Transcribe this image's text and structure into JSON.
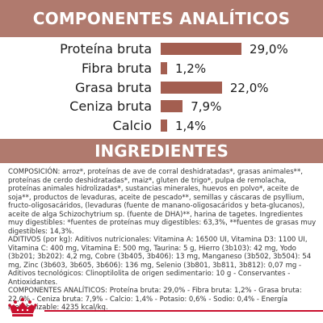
{
  "analytic_section": {
    "title": "COMPONENTES ANALÍTICOS",
    "bar_color": "#a35e50",
    "rows": [
      {
        "label": "Proteína bruta",
        "value_text": "29,0%",
        "value": 29.0
      },
      {
        "label": "Fibra bruta",
        "value_text": "1,2%",
        "value": 1.2
      },
      {
        "label": "Grasa bruta",
        "value_text": "22,0%",
        "value": 22.0
      },
      {
        "label": "Ceniza bruta",
        "value_text": "7,9%",
        "value": 7.9
      },
      {
        "label": "Calcio",
        "value_text": "1,4%",
        "value": 1.4
      }
    ]
  },
  "ingredients_section": {
    "title": "INGREDIENTES",
    "composition": "COMPOSICIÓN: arroz*, proteínas de ave de corral deshidratadas*, grasas animales**, proteínas de cerdo deshidratadas*, maiz*, gluten de trigo*, pulpa de remolacha, proteínas animales hidrolizadas*, sustancias minerales, huevos en polvo*, aceite de soja**, productos de levaduras, aceite de pescado**, semillas y cáscaras de psyllium, fructo-oligosacáridos, (levaduras (fuente de manano-oligosacáridos y beta-glucanos), aceite de alga Schizochytrium sp. (fuente de DHA)**, harina de tagetes. Ingredientes muy digestibles: *fuentes de proteínas muy digestibles: 63,3%, **fuentes de grasas muy digestibles: 14,3%.",
    "additives": "ADITIVOS (por kg): Aditivos nutricionales: Vitamina A: 16500 UI, Vitamina D3: 1100 UI, Vitamina C: 400 mg, Vitamina E: 500 mg, Taurina: 5 g, Hierro (3b103): 42 mg, Yodo (3b201; 3b202): 4,2 mg, Cobre (3b405, 3b406): 13 mg, Manganeso (3b502, 3b504): 54 mg, Zinc (3b603, 3b605, 3b606): 136 mg, Selenio (3b801, 3b811, 3b812): 0,07 mg - Aditivos tecnológicos: Clinoptilolita de origen sedimentario: 10 g - Conservantes - Antioxidantes.",
    "analytic": "COMPONENTES ANALÍTICOS: Proteína bruta: 29,0% - Fibra bruta: 1,2% - Grasa bruta: 22,0% - Ceniza bruta: 7,9% - Calcio: 1,4% - Potasio: 0,6% - Sodio: 0,4% - Energía metabolizable: 4235 kcal/kg."
  },
  "colors": {
    "header_bg": "#b07a6e",
    "brand_red": "#c8102e"
  },
  "logo": {
    "icon": "royal-canin-crown-logo"
  }
}
